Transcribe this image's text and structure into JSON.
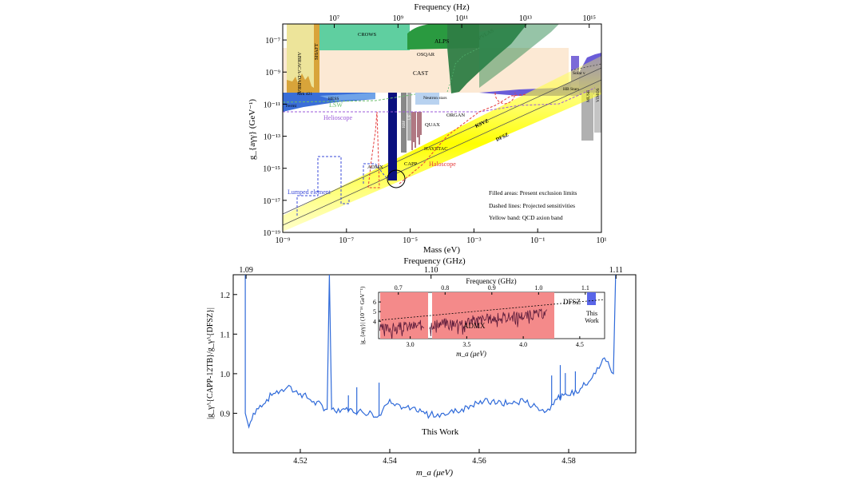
{
  "chart_data": [
    {
      "type": "area",
      "xlabel": "Mass (eV)",
      "ylabel": "g_{aγγ} (GeV⁻¹)",
      "top_axis_label": "Frequency (Hz)",
      "x_scale": "log",
      "y_scale": "log",
      "xlim_exp": [
        -9,
        1
      ],
      "ylim_exp": [
        -19,
        -6
      ],
      "x_ticks": [
        "10⁻⁹",
        "10⁻⁷",
        "10⁻⁵",
        "10⁻³",
        "10⁻¹",
        "10¹"
      ],
      "y_ticks": [
        "10⁻⁷",
        "10⁻⁹",
        "10⁻¹¹",
        "10⁻¹³",
        "10⁻¹⁵",
        "10⁻¹⁷",
        "10⁻¹⁹"
      ],
      "top_ticks": [
        "10⁷",
        "10⁹",
        "10¹¹",
        "10¹³",
        "10¹⁵"
      ],
      "region_labels": [
        "CROWS",
        "ALPS",
        "OSQAR",
        "CAST",
        "ABRACA-DABRA",
        "SHAFT",
        "PVLAS",
        "Mrk 421",
        "HESS",
        "Fermi",
        "LSW",
        "Helioscope",
        "Neutron stars",
        "ORGAN",
        "QUAX",
        "HAYSTAC",
        "ADMX",
        "CAPP",
        "Haloscope",
        "Lumped element",
        "KSVZ",
        "DFSZ",
        "Solar ν",
        "HB Stars",
        "MUSE",
        "VIMOS",
        "RBF",
        "UF"
      ],
      "legend": [
        "Filled areas: Present exclusion limits",
        "Dashed lines: Projected sensitivities",
        "Yellow band: QCD axion band"
      ],
      "colors": {
        "cast": "#fce9d4",
        "crows": "#5fcfa0",
        "alps": "#2a9a40",
        "pvlas": "#2e7d45",
        "abracadabra": "#ede49a",
        "shaft": "#d8a43a",
        "admx": "#0a107e",
        "haystac": "#7a1e2e",
        "capp": "#333",
        "qcd_band": "#ffff00",
        "helioscope": "#9b59d9",
        "haloscope": "#e53b3b",
        "lumped": "#3a4ad8",
        "astro": "#6a5cd8",
        "muse": "#b0b0b0",
        "neutron": "#b8d2f0",
        "lsw": "#6bbf6b"
      }
    },
    {
      "type": "line",
      "xlabel": "m_a (μeV)",
      "ylabel": "|g_γ^{CAPP-12TB}/g_γ^{DFSZ}|",
      "top_axis_label": "Frequency (GHz)",
      "xlim": [
        4.505,
        4.595
      ],
      "ylim": [
        0.8,
        1.25
      ],
      "x_ticks": [
        "4.52",
        "4.54",
        "4.56",
        "4.58"
      ],
      "y_ticks": [
        "0.9",
        "1.0",
        "1.1",
        "1.2"
      ],
      "top_ticks": [
        "1.09",
        "1.10",
        "1.11"
      ],
      "annotation": "This Work",
      "line_color": "#2f6ad9",
      "series": [
        {
          "values": [
            [
              4.5077,
              1.25
            ],
            [
              4.5077,
              0.9
            ],
            [
              4.5085,
              0.865
            ],
            [
              4.5095,
              0.9
            ],
            [
              4.511,
              0.92
            ],
            [
              4.514,
              0.95
            ],
            [
              4.517,
              0.965
            ],
            [
              4.52,
              0.95
            ],
            [
              4.523,
              0.93
            ],
            [
              4.526,
              0.91
            ],
            [
              4.5265,
              1.25
            ],
            [
              4.527,
              0.91
            ],
            [
              4.53,
              0.91
            ],
            [
              4.533,
              0.905
            ],
            [
              4.536,
              0.9
            ],
            [
              4.538,
              0.895
            ],
            [
              4.54,
              0.935
            ],
            [
              4.543,
              0.915
            ],
            [
              4.546,
              0.905
            ],
            [
              4.549,
              0.895
            ],
            [
              4.552,
              0.9
            ],
            [
              4.555,
              0.905
            ],
            [
              4.558,
              0.92
            ],
            [
              4.561,
              0.93
            ],
            [
              4.564,
              0.925
            ],
            [
              4.567,
              0.925
            ],
            [
              4.57,
              0.93
            ],
            [
              4.573,
              0.915
            ],
            [
              4.575,
              0.905
            ],
            [
              4.577,
              0.935
            ],
            [
              4.58,
              0.945
            ],
            [
              4.583,
              0.965
            ],
            [
              4.586,
              1.0
            ],
            [
              4.588,
              1.04
            ],
            [
              4.59,
              1.0
            ],
            [
              4.5905,
              1.25
            ]
          ]
        }
      ],
      "inset": {
        "xlabel": "m_a (μeV)",
        "ylabel": "|g_{aγγ}| (10⁻¹⁶ GeV⁻¹)",
        "top_axis_label": "Frequency (GHz)",
        "x_ticks": [
          "3.0",
          "3.5",
          "4.0",
          "4.5"
        ],
        "y_ticks": [
          "4",
          "5",
          "6"
        ],
        "top_ticks": [
          "0.7",
          "0.8",
          "0.9",
          "1.0",
          "1.1"
        ],
        "labels": [
          "ADMX",
          "DFSZ",
          "This Work"
        ],
        "colors": {
          "admx": "#f48a8a",
          "admx_line": "#5a1a3a",
          "this_work": "#5a66e8",
          "dfsz": "#000000"
        }
      }
    }
  ]
}
